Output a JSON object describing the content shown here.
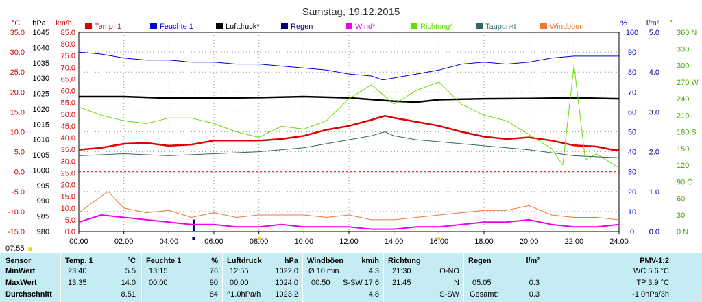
{
  "chart_data": {
    "type": "line",
    "title": "Samstag, 19.12.2015",
    "axes": {
      "temp": {
        "unit": "°C",
        "min": -15,
        "max": 35,
        "ticks": [
          "35.0",
          "30.0",
          "25.0",
          "20.0",
          "15.0",
          "10.0",
          "5.0",
          "0.0",
          "-5.0",
          "-10.0",
          "-15.0"
        ]
      },
      "pressure": {
        "unit": "hPa",
        "min": 980,
        "max": 1045,
        "ticks": [
          "1045",
          "1040",
          "1035",
          "1030",
          "1025",
          "1020",
          "1015",
          "1010",
          "1005",
          "1000",
          "995",
          "990",
          "985",
          "980"
        ]
      },
      "wind": {
        "unit": "km/h",
        "min": 0,
        "max": 85,
        "ticks": [
          "85.0",
          "80.0",
          "75.0",
          "70.0",
          "65.0",
          "60.0",
          "55.0",
          "50.0",
          "45.0",
          "40.0",
          "35.0",
          "30.0",
          "25.0",
          "20.0",
          "15.0",
          "10.0",
          "5.0",
          "0.0"
        ]
      },
      "humidity": {
        "unit": "%",
        "min": 0,
        "max": 100,
        "ticks": [
          "100",
          "90",
          "80",
          "70",
          "60",
          "50",
          "40",
          "30",
          "20",
          "10",
          "0"
        ]
      },
      "rain": {
        "unit": "l/m²",
        "min": 0,
        "max": 5,
        "ticks": [
          "5.0",
          "4.0",
          "3.0",
          "2.0",
          "1.0",
          "0.0"
        ]
      },
      "direction": {
        "unit": "°",
        "min": 0,
        "max": 360,
        "ticks": [
          "360 N",
          "330",
          "300",
          "270 W",
          "240",
          "210",
          "180 S",
          "150",
          "120",
          "90 O",
          "60",
          "30",
          "0 N"
        ]
      }
    },
    "x": {
      "min": 0,
      "max": 24,
      "ticks": [
        "00:00",
        "02:00",
        "04:00",
        "06:00",
        "08:00",
        "10:00",
        "12:00",
        "14:00",
        "16:00",
        "18:00",
        "20:00",
        "22:00",
        "24:00"
      ]
    },
    "legend_position": "top",
    "series": [
      {
        "name": "Temp. 1",
        "color": "#dd0000",
        "axis": "temp",
        "points": [
          [
            0,
            5.5
          ],
          [
            1,
            6
          ],
          [
            2,
            7
          ],
          [
            3,
            7.2
          ],
          [
            4,
            6.5
          ],
          [
            5,
            6.8
          ],
          [
            6,
            7.8
          ],
          [
            7,
            7.8
          ],
          [
            8,
            7.8
          ],
          [
            9,
            8.2
          ],
          [
            10,
            9
          ],
          [
            11,
            10.5
          ],
          [
            12,
            11.5
          ],
          [
            13,
            13
          ],
          [
            13.6,
            14
          ],
          [
            14,
            13.5
          ],
          [
            15,
            12.5
          ],
          [
            16,
            11.5
          ],
          [
            17,
            10
          ],
          [
            18,
            8.8
          ],
          [
            19,
            8.2
          ],
          [
            20,
            8.6
          ],
          [
            21,
            7.8
          ],
          [
            22,
            6.6
          ],
          [
            23,
            6.3
          ],
          [
            23.7,
            5.5
          ],
          [
            24,
            5.5
          ]
        ]
      },
      {
        "name": "Feuchte 1",
        "color": "#0000dd",
        "axis": "humidity",
        "points": [
          [
            0,
            90
          ],
          [
            1,
            89
          ],
          [
            2,
            87
          ],
          [
            3,
            86
          ],
          [
            4,
            86
          ],
          [
            5,
            85
          ],
          [
            6,
            85
          ],
          [
            7,
            84
          ],
          [
            8,
            84
          ],
          [
            9,
            83
          ],
          [
            10,
            82
          ],
          [
            11,
            81
          ],
          [
            12,
            79
          ],
          [
            13,
            78
          ],
          [
            13.5,
            76
          ],
          [
            14,
            77
          ],
          [
            15,
            79
          ],
          [
            16,
            81
          ],
          [
            17,
            84
          ],
          [
            18,
            85
          ],
          [
            19,
            84
          ],
          [
            20,
            85
          ],
          [
            21,
            87
          ],
          [
            22,
            88
          ],
          [
            23,
            88
          ],
          [
            24,
            88
          ]
        ]
      },
      {
        "name": "Luftdruck*",
        "color": "#000000",
        "axis": "pressure",
        "points": [
          [
            0,
            1024
          ],
          [
            2,
            1024
          ],
          [
            4,
            1023.5
          ],
          [
            6,
            1023.5
          ],
          [
            8,
            1023.7
          ],
          [
            10,
            1024
          ],
          [
            12,
            1023.6
          ],
          [
            14,
            1022.5
          ],
          [
            15,
            1022.2
          ],
          [
            16,
            1023
          ],
          [
            18,
            1023.3
          ],
          [
            20,
            1023.4
          ],
          [
            22,
            1023.6
          ],
          [
            24,
            1023.3
          ]
        ]
      },
      {
        "name": "Regen",
        "color": "#000080",
        "axis": "rain",
        "points": [
          [
            5.1,
            0.3
          ]
        ]
      },
      {
        "name": "Wind*",
        "color": "#ee00ee",
        "axis": "wind",
        "points": [
          [
            0,
            4
          ],
          [
            1,
            7
          ],
          [
            2,
            6
          ],
          [
            3,
            5
          ],
          [
            4,
            4
          ],
          [
            5,
            3
          ],
          [
            6,
            3
          ],
          [
            7,
            2
          ],
          [
            8,
            2
          ],
          [
            9,
            3
          ],
          [
            10,
            2
          ],
          [
            11,
            2
          ],
          [
            12,
            2
          ],
          [
            13,
            1
          ],
          [
            14,
            1
          ],
          [
            15,
            2
          ],
          [
            16,
            2
          ],
          [
            17,
            3
          ],
          [
            18,
            4
          ],
          [
            19,
            4
          ],
          [
            20,
            5
          ],
          [
            21,
            3
          ],
          [
            22,
            2
          ],
          [
            23,
            2
          ],
          [
            24,
            3
          ]
        ]
      },
      {
        "name": "Richtung*",
        "color": "#66dd00",
        "axis": "direction",
        "points": [
          [
            0,
            225
          ],
          [
            1,
            210
          ],
          [
            2,
            200
          ],
          [
            3,
            195
          ],
          [
            4,
            205
          ],
          [
            5,
            205
          ],
          [
            6,
            195
          ],
          [
            7,
            180
          ],
          [
            8,
            170
          ],
          [
            9,
            190
          ],
          [
            10,
            185
          ],
          [
            11,
            200
          ],
          [
            12,
            240
          ],
          [
            13,
            265
          ],
          [
            14,
            230
          ],
          [
            15,
            255
          ],
          [
            16,
            270
          ],
          [
            17,
            230
          ],
          [
            18,
            210
          ],
          [
            19,
            200
          ],
          [
            20,
            175
          ],
          [
            21,
            150
          ],
          [
            21.5,
            120
          ],
          [
            22,
            300
          ],
          [
            22.5,
            130
          ],
          [
            23,
            140
          ],
          [
            24,
            115
          ]
        ]
      },
      {
        "name": "Taupunkt",
        "color": "#336666",
        "axis": "temp",
        "points": [
          [
            0,
            4
          ],
          [
            2,
            4.5
          ],
          [
            4,
            4
          ],
          [
            6,
            4.5
          ],
          [
            8,
            5
          ],
          [
            10,
            6
          ],
          [
            12,
            8
          ],
          [
            13,
            9
          ],
          [
            13.6,
            10
          ],
          [
            14,
            9
          ],
          [
            15,
            8
          ],
          [
            16,
            7.5
          ],
          [
            18,
            6.5
          ],
          [
            20,
            5.5
          ],
          [
            22,
            4
          ],
          [
            24,
            3.5
          ]
        ]
      },
      {
        "name": "Windböen",
        "color": "#ee7733",
        "axis": "wind",
        "points": [
          [
            0,
            8
          ],
          [
            1,
            15
          ],
          [
            1.3,
            17
          ],
          [
            2,
            10
          ],
          [
            3,
            8
          ],
          [
            4,
            9
          ],
          [
            5,
            6
          ],
          [
            6,
            8
          ],
          [
            7,
            6
          ],
          [
            8,
            7
          ],
          [
            9,
            7
          ],
          [
            10,
            7
          ],
          [
            11,
            6
          ],
          [
            12,
            7
          ],
          [
            13,
            5
          ],
          [
            14,
            5
          ],
          [
            15,
            6
          ],
          [
            16,
            7
          ],
          [
            17,
            8
          ],
          [
            18,
            9
          ],
          [
            19,
            9
          ],
          [
            20,
            11
          ],
          [
            21,
            7
          ],
          [
            22,
            6
          ],
          [
            23,
            6
          ],
          [
            24,
            5
          ]
        ]
      }
    ]
  },
  "start_time": "07:55",
  "stats": {
    "row_labels": [
      "Sensor",
      "MinWert",
      "MaxWert",
      "Durchschnitt"
    ],
    "temp": {
      "title": "Temp. 1",
      "unit": "°C",
      "min_time": "23:40",
      "min": "5.5",
      "max_time": "13:35",
      "max": "14.0",
      "avg": "8.51"
    },
    "humidity": {
      "title": "Feuchte 1",
      "unit": "%",
      "min_time": "13:15",
      "min": "76",
      "max_time": "00:00",
      "max": "90",
      "avg": "84"
    },
    "pressure": {
      "title": "Luftdruck",
      "unit": "hPa",
      "min_time": "12:55",
      "min": "1022.0",
      "max_time": "00:00",
      "max": "1024.0",
      "trend": "^1.0hPa/h",
      "avg": "1023.2"
    },
    "gust": {
      "title": "Windböen",
      "unit": "km/h",
      "avg10_label": "Ø 10 min.",
      "avg10": "4.3",
      "max_time": "00:50",
      "max_dir": "S-SW",
      "max": "17.6",
      "avg": "4.8"
    },
    "direction": {
      "title": "Richtung",
      "min_time": "21:30",
      "min": "O-NO",
      "max_time": "21:45",
      "max": "N",
      "avg": "S-SW"
    },
    "rain": {
      "title": "Regen",
      "unit": "l/m²",
      "max_time": "05:05",
      "max": "0.3",
      "total_label": "Gesamt:",
      "total": "0.3"
    },
    "pmv": {
      "title": "PMV-1:2",
      "wc": "WC 5.6 °C",
      "tp": "TP 3.9 °C",
      "trend": "-1.0hPa/3h"
    }
  }
}
